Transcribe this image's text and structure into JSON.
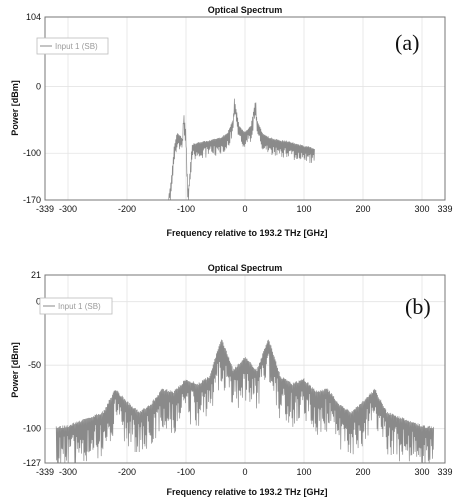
{
  "colors": {
    "trace": "#8a8a8a",
    "grid": "#e4e4e4",
    "axis": "#777777",
    "legend_border": "#bdbdbd",
    "legend_text": "#9a9a9a"
  },
  "chart_data": [
    {
      "type": "line",
      "panel_label": "(a)",
      "title": "Optical Spectrum",
      "xlabel": "Frequency relative to 193.2 THz [GHz]",
      "ylabel": "Power [dBm]",
      "x_ticks": [
        "-339",
        "-300",
        "-200",
        "-100",
        "0",
        "100",
        "200",
        "300",
        "339"
      ],
      "y_ticks": [
        "104",
        "0",
        "-100",
        "-170"
      ],
      "xlim": [
        -339,
        339
      ],
      "ylim": [
        -170,
        104
      ],
      "grid": true,
      "legend_position": "top-left",
      "series": [
        {
          "name": "Input 1 (SB)",
          "x": [
            -130,
            -125,
            -120,
            -115,
            -110,
            -106,
            -104,
            -100,
            -98,
            -96,
            -90,
            -80,
            -70,
            -60,
            -50,
            -40,
            -30,
            -20,
            -18,
            -10,
            0,
            10,
            18,
            20,
            30,
            40,
            50,
            60,
            70,
            80,
            90,
            100,
            110,
            118
          ],
          "y": [
            -170,
            -140,
            -90,
            -70,
            -75,
            -80,
            -40,
            -70,
            -130,
            -160,
            -88,
            -85,
            -83,
            -82,
            -80,
            -77,
            -72,
            -50,
            -20,
            -60,
            -70,
            -60,
            -20,
            -50,
            -72,
            -77,
            -80,
            -82,
            -83,
            -85,
            -88,
            -90,
            -92,
            -95
          ]
        }
      ]
    },
    {
      "type": "line",
      "panel_label": "(b)",
      "title": "Optical Spectrum",
      "xlabel": "Frequency relative to 193.2 THz [GHz]",
      "ylabel": "Power [dBm]",
      "x_ticks": [
        "-339",
        "-300",
        "-200",
        "-100",
        "0",
        "100",
        "200",
        "300",
        "339"
      ],
      "y_ticks": [
        "21",
        "0",
        "-50",
        "-100",
        "-127"
      ],
      "xlim": [
        -339,
        339
      ],
      "ylim": [
        -127,
        21
      ],
      "grid": true,
      "legend_position": "top-left",
      "series": [
        {
          "name": "Input 1 (SB)",
          "x": [
            -320,
            -300,
            -280,
            -260,
            -240,
            -220,
            -200,
            -180,
            -160,
            -140,
            -120,
            -100,
            -80,
            -60,
            -40,
            -20,
            0,
            20,
            40,
            60,
            80,
            100,
            120,
            140,
            160,
            180,
            200,
            220,
            240,
            260,
            280,
            300,
            320
          ],
          "y": [
            -100,
            -99,
            -95,
            -92,
            -88,
            -70,
            -80,
            -88,
            -82,
            -70,
            -72,
            -62,
            -66,
            -60,
            -30,
            -55,
            -45,
            -55,
            -30,
            -60,
            -66,
            -62,
            -72,
            -70,
            -82,
            -88,
            -80,
            -70,
            -88,
            -92,
            -95,
            -99,
            -100
          ]
        }
      ]
    }
  ]
}
